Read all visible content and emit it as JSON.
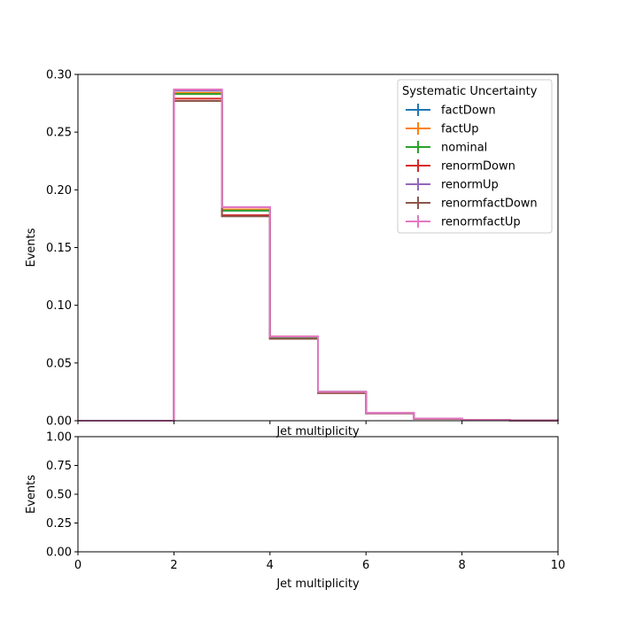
{
  "chart_data": [
    {
      "type": "step",
      "xlabel": "Jet multiplicity",
      "ylabel": "Events",
      "xlim": [
        0,
        10
      ],
      "ylim": [
        0,
        0.3
      ],
      "x_ticks": [
        0,
        2,
        4,
        6,
        8,
        10
      ],
      "y_ticks": [
        "0.00",
        "0.05",
        "0.10",
        "0.15",
        "0.20",
        "0.25",
        "0.30"
      ],
      "y_tick_values": [
        0,
        0.05,
        0.1,
        0.15,
        0.2,
        0.25,
        0.3
      ],
      "bin_edges": [
        0,
        1,
        2,
        3,
        4,
        5,
        6,
        7,
        8,
        9,
        10
      ],
      "legend": {
        "title": "Systematic Uncertainty",
        "placement": "top-right"
      },
      "series": [
        {
          "name": "factDown",
          "color": "#1f77b4",
          "values": [
            0,
            0,
            0.284,
            0.182,
            0.072,
            0.025,
            0.0065,
            0.0018,
            0.0006,
            0.0002
          ]
        },
        {
          "name": "factUp",
          "color": "#ff7f0e",
          "values": [
            0,
            0,
            0.284,
            0.183,
            0.073,
            0.025,
            0.0066,
            0.0018,
            0.0006,
            0.0002
          ]
        },
        {
          "name": "nominal",
          "color": "#2ca02c",
          "values": [
            0,
            0,
            0.283,
            0.182,
            0.072,
            0.025,
            0.0065,
            0.0018,
            0.0006,
            0.0002
          ]
        },
        {
          "name": "renormDown",
          "color": "#d62728",
          "values": [
            0,
            0,
            0.279,
            0.178,
            0.071,
            0.024,
            0.0064,
            0.0017,
            0.0006,
            0.0002
          ]
        },
        {
          "name": "renormUp",
          "color": "#9467bd",
          "values": [
            0,
            0,
            0.286,
            0.185,
            0.073,
            0.025,
            0.0067,
            0.0019,
            0.0006,
            0.0002
          ]
        },
        {
          "name": "renormfactDown",
          "color": "#8c564b",
          "values": [
            0,
            0,
            0.277,
            0.177,
            0.071,
            0.024,
            0.0063,
            0.0017,
            0.0006,
            0.0002
          ]
        },
        {
          "name": "renormfactUp",
          "color": "#e377c2",
          "values": [
            0,
            0,
            0.287,
            0.185,
            0.073,
            0.025,
            0.0067,
            0.0019,
            0.0006,
            0.0002
          ]
        }
      ]
    },
    {
      "type": "line",
      "xlabel": "Jet multiplicity",
      "ylabel": "Events",
      "xlim": [
        0,
        10
      ],
      "ylim": [
        0,
        1
      ],
      "x_ticks": [
        0,
        2,
        4,
        6,
        8,
        10
      ],
      "y_ticks": [
        "0.00",
        "0.25",
        "0.50",
        "0.75",
        "1.00"
      ],
      "y_tick_values": [
        0,
        0.25,
        0.5,
        0.75,
        1.0
      ],
      "series": []
    }
  ]
}
